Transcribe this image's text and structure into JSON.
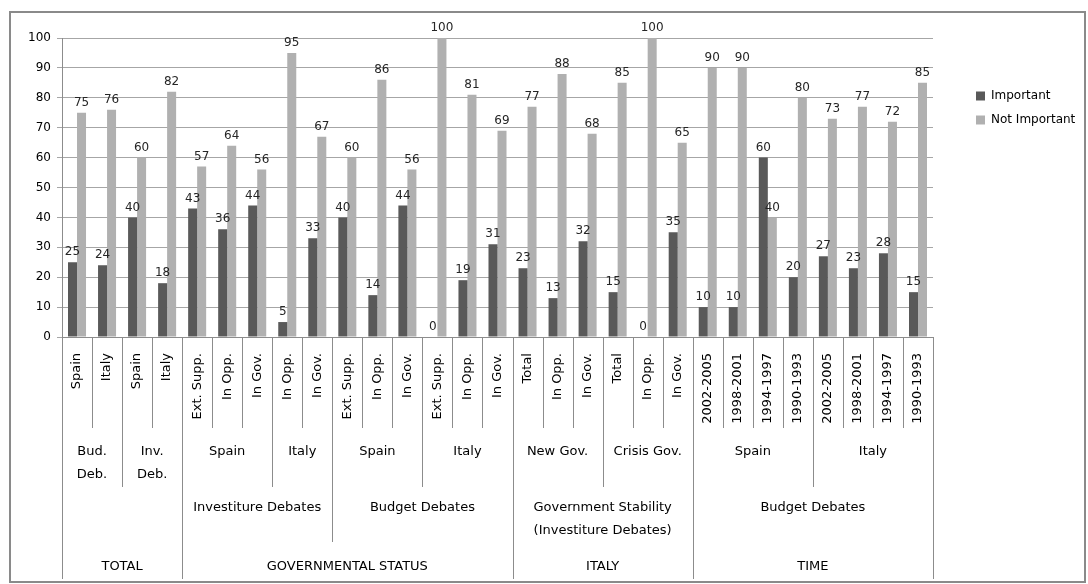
{
  "chart_data": {
    "type": "bar",
    "categories": [
      "Spain",
      "Italy",
      "Spain",
      "Italy",
      "Ext. Supp.",
      "In Opp.",
      "In Gov.",
      "In Opp.",
      "In Gov.",
      "Ext. Supp.",
      "In Opp.",
      "In Gov.",
      "Ext. Supp.",
      "In Opp.",
      "In Gov.",
      "Total",
      "In Opp.",
      "In Gov.",
      "Total",
      "In Opp.",
      "In Gov.",
      "2002-2005",
      "1998-2001",
      "1994-1997",
      "1990-1993",
      "2002-2005",
      "1998-2001",
      "1994-1997",
      "1990-1993"
    ],
    "series": [
      {
        "name": "Important",
        "color": "#595959",
        "values": [
          25,
          24,
          40,
          18,
          43,
          36,
          44,
          5,
          33,
          40,
          14,
          44,
          0,
          19,
          31,
          23,
          13,
          32,
          15,
          0,
          35,
          10,
          10,
          60,
          20,
          27,
          23,
          28,
          15
        ]
      },
      {
        "name": "Not Important",
        "color": "#b0b0b0",
        "values": [
          75,
          76,
          60,
          82,
          57,
          64,
          56,
          95,
          67,
          60,
          86,
          56,
          100,
          81,
          69,
          77,
          88,
          68,
          85,
          100,
          65,
          90,
          90,
          40,
          80,
          73,
          77,
          72,
          85
        ]
      }
    ],
    "ylim": [
      0,
      100
    ],
    "yticks": [
      0,
      10,
      20,
      30,
      40,
      50,
      60,
      70,
      80,
      90,
      100
    ],
    "grid": "y",
    "legend": "right",
    "data_labels": true,
    "annotations": [
      "Bud. Deb.",
      "Inv. Deb.",
      "Spain",
      "Italy",
      "Spain",
      "Italy",
      "New Gov.",
      "Crisis Gov.",
      "Spain",
      "Italy",
      "Investiture Debates",
      "Budget Debates",
      "Government Stability (Investiture Debates)",
      "Budget Debates",
      "TOTAL",
      "GOVERNMENTAL STATUS",
      "ITALY",
      "TIME"
    ]
  }
}
